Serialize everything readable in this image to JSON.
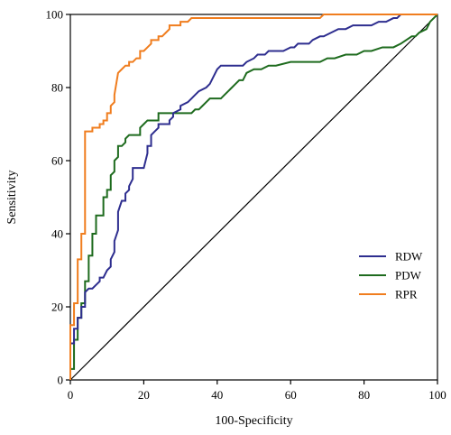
{
  "chart_data": {
    "type": "line",
    "title": "",
    "xlabel": "100-Specificity",
    "ylabel": "Sensitivity",
    "xlim": [
      0,
      100
    ],
    "ylim": [
      0,
      100
    ],
    "xticks": [
      0,
      20,
      40,
      60,
      80,
      100
    ],
    "yticks": [
      0,
      20,
      40,
      60,
      80,
      100
    ],
    "grid": false,
    "legend_position": "bottom-right",
    "reference_line": {
      "x": [
        0,
        100
      ],
      "y": [
        0,
        100
      ],
      "color": "#000000"
    },
    "series": [
      {
        "name": "RDW",
        "color": "#2e2e8f",
        "x": [
          0,
          0,
          1,
          1,
          2,
          2,
          3,
          3,
          4,
          4,
          5,
          6,
          7,
          8,
          8,
          9,
          10,
          11,
          11,
          12,
          12,
          13,
          13,
          14,
          15,
          15,
          16,
          16,
          17,
          17,
          18,
          20,
          21,
          21,
          22,
          22,
          23,
          24,
          24,
          25,
          27,
          27,
          28,
          28,
          30,
          30,
          32,
          33,
          34,
          35,
          37,
          38,
          39,
          40,
          41,
          42,
          43,
          46,
          47,
          48,
          50,
          51,
          53,
          54,
          56,
          57,
          58,
          60,
          61,
          62,
          64,
          65,
          66,
          68,
          69,
          71,
          73,
          75,
          77,
          79,
          80,
          82,
          84,
          86,
          88,
          89,
          90,
          91,
          93,
          95,
          97,
          100
        ],
        "y": [
          0,
          10,
          10,
          14,
          14,
          17,
          17,
          20,
          20,
          24,
          25,
          25,
          26,
          27,
          28,
          28,
          30,
          31,
          33,
          35,
          38,
          41,
          46,
          49,
          49,
          51,
          52,
          53,
          55,
          58,
          58,
          58,
          62,
          64,
          64,
          67,
          68,
          69,
          70,
          70,
          70,
          71,
          72,
          73,
          74,
          75,
          76,
          77,
          78,
          79,
          80,
          81,
          83,
          85,
          86,
          86,
          86,
          86,
          86,
          87,
          88,
          89,
          89,
          90,
          90,
          90,
          90,
          91,
          91,
          92,
          92,
          92,
          93,
          94,
          94,
          95,
          96,
          96,
          97,
          97,
          97,
          97,
          98,
          98,
          99,
          99,
          100,
          100,
          100,
          100,
          100,
          100
        ]
      },
      {
        "name": "PDW",
        "color": "#1e6b1e",
        "x": [
          0,
          0,
          1,
          1,
          2,
          2,
          3,
          3,
          4,
          4,
          5,
          5,
          6,
          6,
          7,
          7,
          8,
          9,
          9,
          10,
          10,
          11,
          11,
          12,
          12,
          13,
          13,
          14,
          15,
          15,
          16,
          17,
          18,
          19,
          19,
          20,
          21,
          24,
          24,
          26,
          29,
          33,
          34,
          35,
          36,
          37,
          38,
          40,
          41,
          42,
          43,
          44,
          45,
          46,
          47,
          48,
          50,
          52,
          54,
          56,
          60,
          62,
          65,
          68,
          70,
          72,
          75,
          78,
          80,
          82,
          85,
          88,
          90,
          93,
          94,
          95,
          97,
          98,
          100
        ],
        "y": [
          0,
          3,
          3,
          11,
          11,
          17,
          17,
          21,
          21,
          27,
          27,
          34,
          34,
          40,
          40,
          45,
          45,
          45,
          50,
          50,
          52,
          52,
          56,
          57,
          60,
          61,
          64,
          64,
          65,
          66,
          67,
          67,
          67,
          67,
          69,
          70,
          71,
          71,
          73,
          73,
          73,
          73,
          74,
          74,
          75,
          76,
          77,
          77,
          77,
          78,
          79,
          80,
          81,
          82,
          82,
          84,
          85,
          85,
          86,
          86,
          87,
          87,
          87,
          87,
          88,
          88,
          89,
          89,
          90,
          90,
          91,
          91,
          92,
          94,
          94,
          95,
          96,
          98,
          100
        ]
      },
      {
        "name": "RPR",
        "color": "#f07d1e",
        "x": [
          0,
          0,
          1,
          1,
          2,
          2,
          3,
          3,
          4,
          4,
          5,
          6,
          6,
          7,
          8,
          8,
          9,
          9,
          10,
          10,
          11,
          11,
          12,
          12,
          13,
          14,
          15,
          16,
          16,
          17,
          17,
          18,
          18,
          19,
          19,
          20,
          21,
          22,
          22,
          23,
          24,
          24,
          25,
          26,
          27,
          27,
          29,
          30,
          30,
          31,
          32,
          33,
          35,
          40,
          50,
          60,
          61,
          63,
          64,
          66,
          68,
          69,
          72,
          80,
          90,
          100
        ],
        "y": [
          0,
          15,
          15,
          21,
          21,
          33,
          33,
          40,
          40,
          68,
          68,
          68,
          69,
          69,
          69,
          70,
          70,
          71,
          71,
          73,
          73,
          75,
          76,
          78,
          84,
          85,
          86,
          86,
          87,
          87,
          87,
          88,
          88,
          88,
          90,
          90,
          91,
          92,
          93,
          93,
          93,
          94,
          94,
          95,
          96,
          97,
          97,
          97,
          98,
          98,
          98,
          99,
          99,
          99,
          99,
          99,
          99,
          99,
          99,
          99,
          99,
          100,
          100,
          100,
          100,
          100
        ]
      }
    ]
  }
}
